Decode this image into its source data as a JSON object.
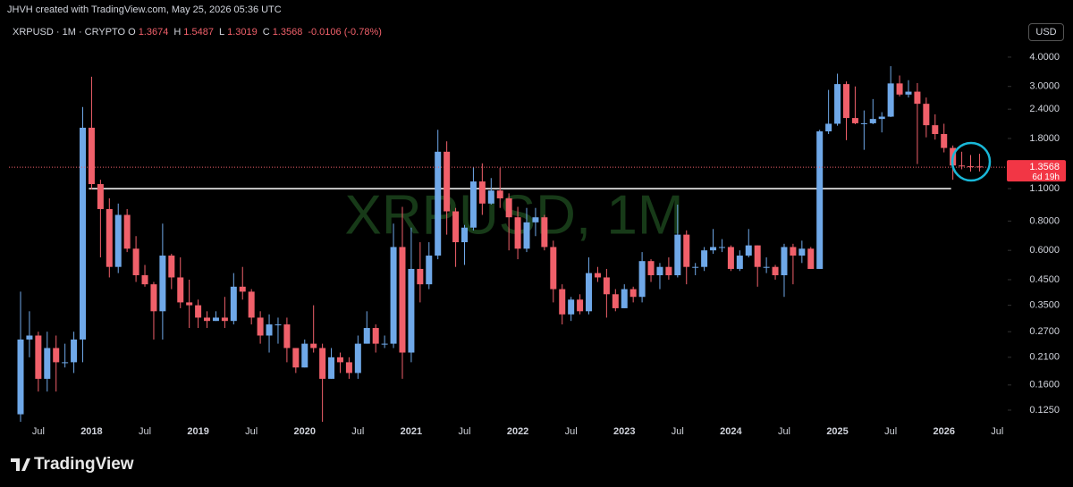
{
  "header": {
    "attribution": "JHVH created with TradingView.com, May 25, 2026 05:36 UTC",
    "symbol": "XRPUSD · 1M · CRYPTO",
    "ohlc": [
      {
        "key": "O",
        "value": "1.3674"
      },
      {
        "key": "H",
        "value": "1.5487"
      },
      {
        "key": "L",
        "value": "1.3019"
      },
      {
        "key": "C",
        "value": "1.3568"
      }
    ],
    "change": "-0.0106 (-0.78%)",
    "currency": "USD"
  },
  "chart_data": {
    "type": "candlestick",
    "watermark": "XRPUSD, 1M",
    "log_scale": true,
    "up_color": "#6fa8e8",
    "down_color": "#f0606a",
    "ylim": [
      0.1115,
      4.52
    ],
    "yticks": [
      {
        "value": 4,
        "label": "4.0000"
      },
      {
        "value": 3,
        "label": "3.0000"
      },
      {
        "value": 2.4,
        "label": "2.4000"
      },
      {
        "value": 1.8,
        "label": "1.8000"
      },
      {
        "value": 1.1,
        "label": "1.1000"
      },
      {
        "value": 0.8,
        "label": "0.8000"
      },
      {
        "value": 0.6,
        "label": "0.6000"
      },
      {
        "value": 0.45,
        "label": "0.4500"
      },
      {
        "value": 0.35,
        "label": "0.3500"
      },
      {
        "value": 0.27,
        "label": "0.2700"
      },
      {
        "value": 0.21,
        "label": "0.2100"
      },
      {
        "value": 0.16,
        "label": "0.1600"
      },
      {
        "value": 0.125,
        "label": "0.1250"
      }
    ],
    "horizontal_line": 1.1,
    "countdown": "6d 19h",
    "categories": [
      null,
      null,
      "Jul",
      null,
      null,
      null,
      null,
      null,
      "2018",
      null,
      null,
      null,
      null,
      null,
      "Jul",
      null,
      null,
      null,
      null,
      null,
      "2019",
      null,
      null,
      null,
      null,
      null,
      "Jul",
      null,
      null,
      null,
      null,
      null,
      "2020",
      null,
      null,
      null,
      null,
      null,
      "Jul",
      null,
      null,
      null,
      null,
      null,
      "2021",
      null,
      null,
      null,
      null,
      null,
      "Jul",
      null,
      null,
      null,
      null,
      null,
      "2022",
      null,
      null,
      null,
      null,
      null,
      "Jul",
      null,
      null,
      null,
      null,
      null,
      "2023",
      null,
      null,
      null,
      null,
      null,
      "Jul",
      null,
      null,
      null,
      null,
      null,
      "2024",
      null,
      null,
      null,
      null,
      null,
      "Jul",
      null,
      null,
      null,
      null,
      null,
      "2025",
      null,
      null,
      null,
      null,
      null,
      "Jul",
      null,
      null,
      null,
      null,
      null,
      "2026",
      null,
      null,
      null,
      null,
      null,
      "Jul"
    ],
    "open": [
      0.12,
      0.25,
      0.26,
      0.17,
      0.23,
      0.2,
      0.2,
      0.25,
      2.0,
      1.15,
      0.9,
      0.51,
      0.85,
      0.61,
      0.47,
      0.43,
      0.33,
      0.57,
      0.46,
      0.36,
      0.35,
      0.31,
      0.3,
      0.31,
      0.3,
      0.42,
      0.4,
      0.31,
      0.26,
      0.29,
      0.29,
      0.23,
      0.19,
      0.24,
      0.23,
      0.17,
      0.21,
      0.2,
      0.18,
      0.24,
      0.28,
      0.24,
      0.24,
      0.62,
      0.22,
      0.5,
      0.43,
      0.57,
      1.58,
      0.88,
      0.65,
      0.75,
      1.18,
      0.95,
      1.08,
      1.0,
      0.83,
      0.61,
      0.79,
      0.83,
      0.62,
      0.41,
      0.32,
      0.37,
      0.33,
      0.48,
      0.46,
      0.39,
      0.34,
      0.41,
      0.38,
      0.54,
      0.47,
      0.51,
      0.47,
      0.7,
      0.51,
      0.51,
      0.6,
      0.62,
      0.62,
      0.5,
      0.57,
      0.63,
      0.51,
      0.51,
      0.47,
      0.62,
      0.57,
      0.61,
      0.5,
      1.93,
      2.08,
      3.07,
      2.2,
      2.09,
      2.09,
      2.18,
      2.23,
      3.09,
      2.77,
      2.85,
      2.53,
      2.05,
      1.88,
      1.64,
      1.38,
      1.37,
      1.3674,
      null,
      null
    ],
    "high": [
      0.4,
      0.33,
      0.27,
      0.27,
      0.26,
      0.24,
      0.27,
      2.45,
      3.3,
      1.2,
      1.0,
      0.95,
      0.9,
      0.69,
      0.52,
      0.44,
      0.78,
      0.58,
      0.56,
      0.45,
      0.37,
      0.33,
      0.33,
      0.38,
      0.48,
      0.51,
      0.41,
      0.33,
      0.32,
      0.31,
      0.31,
      0.23,
      0.25,
      0.35,
      0.24,
      0.23,
      0.22,
      0.21,
      0.26,
      0.33,
      0.29,
      0.26,
      0.78,
      0.92,
      0.75,
      0.65,
      0.65,
      1.96,
      1.75,
      0.91,
      0.77,
      1.36,
      1.41,
      1.22,
      1.35,
      1.05,
      0.92,
      0.91,
      0.91,
      0.85,
      0.66,
      0.43,
      0.38,
      0.39,
      0.56,
      0.51,
      0.5,
      0.41,
      0.43,
      0.42,
      0.59,
      0.55,
      0.53,
      0.56,
      0.94,
      0.73,
      0.53,
      0.62,
      0.74,
      0.67,
      0.63,
      0.6,
      0.74,
      0.63,
      0.56,
      0.52,
      0.64,
      0.64,
      0.66,
      0.62,
      1.96,
      2.9,
      3.4,
      3.15,
      3.0,
      2.37,
      2.65,
      2.33,
      3.66,
      3.34,
      3.19,
      3.1,
      2.69,
      2.28,
      2.08,
      1.68,
      1.58,
      1.53,
      1.5487,
      null,
      null
    ],
    "low": [
      0.08,
      0.21,
      0.15,
      0.15,
      0.15,
      0.19,
      0.18,
      0.2,
      1.09,
      0.56,
      0.46,
      0.48,
      0.59,
      0.44,
      0.42,
      0.25,
      0.25,
      0.41,
      0.34,
      0.28,
      0.28,
      0.28,
      0.3,
      0.28,
      0.29,
      0.37,
      0.29,
      0.24,
      0.22,
      0.24,
      0.2,
      0.18,
      0.19,
      0.22,
      0.11,
      0.17,
      0.18,
      0.17,
      0.17,
      0.24,
      0.22,
      0.23,
      0.23,
      0.17,
      0.2,
      0.36,
      0.41,
      0.55,
      0.7,
      0.51,
      0.52,
      0.73,
      0.85,
      0.94,
      0.91,
      0.6,
      0.55,
      0.59,
      0.69,
      0.6,
      0.36,
      0.29,
      0.3,
      0.32,
      0.32,
      0.44,
      0.31,
      0.33,
      0.34,
      0.36,
      0.36,
      0.44,
      0.41,
      0.45,
      0.46,
      0.43,
      0.47,
      0.49,
      0.58,
      0.59,
      0.49,
      0.49,
      0.56,
      0.42,
      0.48,
      0.45,
      0.38,
      0.43,
      0.53,
      0.5,
      0.5,
      1.88,
      2.04,
      1.77,
      2.07,
      1.61,
      2.07,
      1.91,
      2.22,
      2.72,
      2.69,
      1.4,
      1.82,
      1.78,
      1.57,
      1.2,
      1.33,
      1.3,
      1.3019,
      null,
      null
    ],
    "close": [
      0.25,
      0.26,
      0.17,
      0.23,
      0.2,
      0.2,
      0.25,
      2.0,
      1.15,
      0.9,
      0.51,
      0.85,
      0.61,
      0.47,
      0.43,
      0.33,
      0.57,
      0.46,
      0.36,
      0.35,
      0.31,
      0.3,
      0.31,
      0.3,
      0.42,
      0.4,
      0.31,
      0.26,
      0.29,
      0.29,
      0.23,
      0.19,
      0.24,
      0.23,
      0.17,
      0.21,
      0.2,
      0.18,
      0.24,
      0.28,
      0.24,
      0.24,
      0.62,
      0.22,
      0.5,
      0.43,
      0.57,
      1.58,
      0.88,
      0.65,
      0.75,
      1.18,
      0.95,
      1.08,
      1.0,
      0.83,
      0.61,
      0.79,
      0.83,
      0.62,
      0.41,
      0.32,
      0.37,
      0.33,
      0.48,
      0.46,
      0.39,
      0.34,
      0.41,
      0.38,
      0.54,
      0.47,
      0.51,
      0.47,
      0.7,
      0.51,
      0.51,
      0.6,
      0.62,
      0.62,
      0.5,
      0.57,
      0.63,
      0.51,
      0.51,
      0.47,
      0.62,
      0.57,
      0.61,
      0.5,
      1.93,
      2.08,
      3.07,
      2.2,
      2.09,
      2.09,
      2.18,
      2.23,
      3.09,
      2.77,
      2.85,
      2.53,
      2.05,
      1.88,
      1.64,
      1.38,
      1.37,
      1.3674,
      1.3568,
      null,
      null
    ]
  },
  "footer": {
    "brand": "TradingView"
  }
}
